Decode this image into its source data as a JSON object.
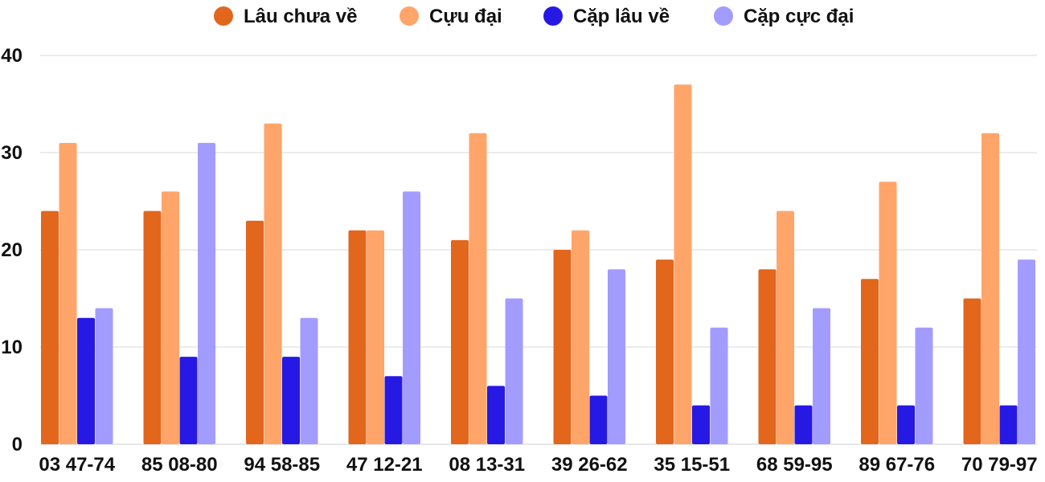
{
  "chart_data": {
    "type": "bar",
    "title": "",
    "xlabel": "",
    "ylabel": "",
    "ylim": [
      0,
      40
    ],
    "yticks": [
      0,
      10,
      20,
      30,
      40
    ],
    "grid": true,
    "legend_position": "top",
    "categories": [
      "03 47-74",
      "85 08-80",
      "94 58-85",
      "47 12-21",
      "08 13-31",
      "39 26-62",
      "35 15-51",
      "68 59-95",
      "89 67-76",
      "70 79-97"
    ],
    "series": [
      {
        "name": "Lâu chưa về",
        "color": "#e2661c",
        "values": [
          24,
          24,
          23,
          22,
          21,
          20,
          19,
          18,
          17,
          15
        ]
      },
      {
        "name": "Cựu đại",
        "color": "#ffa56a",
        "values": [
          31,
          26,
          33,
          22,
          32,
          22,
          37,
          24,
          27,
          32
        ]
      },
      {
        "name": "Cặp lâu về",
        "color": "#2619e4",
        "values": [
          13,
          9,
          9,
          7,
          6,
          5,
          4,
          4,
          4,
          4
        ]
      },
      {
        "name": "Cặp cực đại",
        "color": "#a39cff",
        "values": [
          14,
          31,
          13,
          26,
          15,
          18,
          12,
          14,
          12,
          19
        ]
      }
    ]
  }
}
